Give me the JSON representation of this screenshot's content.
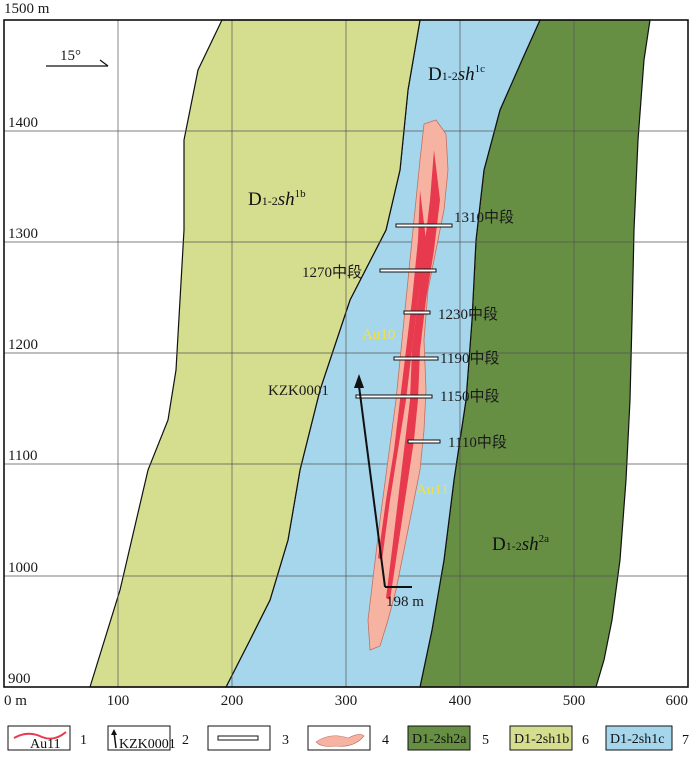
{
  "axes": {
    "y_title": "1500 m",
    "y_ticks": [
      "1400",
      "1300",
      "1200",
      "1100",
      "1000",
      "900"
    ],
    "x_ticks": [
      "0 m",
      "100",
      "200",
      "300",
      "400",
      "500",
      "600"
    ]
  },
  "azimuth": {
    "label": "15°"
  },
  "formations": {
    "sh1b": {
      "prefix": "D",
      "sub": "1-2",
      "main": "sh",
      "sup": "1b",
      "color": "#d4de8e"
    },
    "sh1c": {
      "prefix": "D",
      "sub": "1-2",
      "main": "sh",
      "sup": "1c",
      "color": "#a6d6ec"
    },
    "sh2a": {
      "prefix": "D",
      "sub": "1-2",
      "main": "sh",
      "sup": "2a",
      "color": "#668f44"
    }
  },
  "orebodies": {
    "au10": "Au10",
    "au11": "Au11",
    "halo_color": "#f7b3a2",
    "vein_color": "#e83a4e"
  },
  "levels": [
    {
      "label": "1310中段"
    },
    {
      "label": "1270中段"
    },
    {
      "label": "1230中段"
    },
    {
      "label": "1190中段"
    },
    {
      "label": "1150中段"
    },
    {
      "label": "1110中段"
    }
  ],
  "drill": {
    "name": "KZK0001",
    "depth": "198 m"
  },
  "legend": [
    {
      "num": "1",
      "text": "Au11"
    },
    {
      "num": "2",
      "text": "KZK0001"
    },
    {
      "num": "3",
      "text": ""
    },
    {
      "num": "4",
      "text": ""
    },
    {
      "num": "5",
      "text": "D1-2sh2a"
    },
    {
      "num": "6",
      "text": "D1-2sh1b"
    },
    {
      "num": "7",
      "text": "D1-2sh1c"
    }
  ]
}
